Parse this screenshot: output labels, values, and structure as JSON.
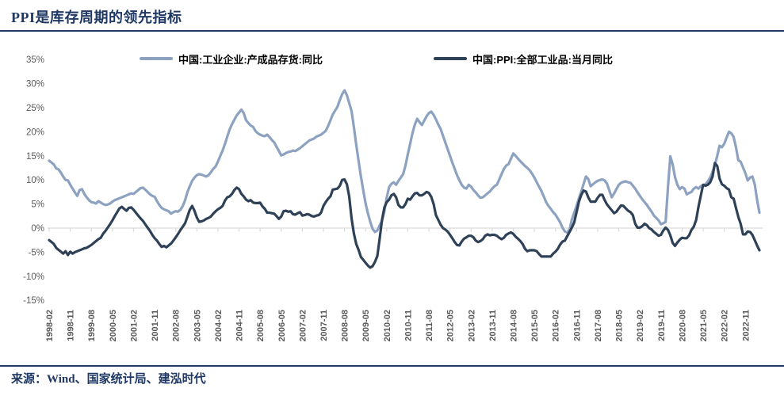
{
  "page": {
    "title": "PPI是库存周期的领先指标",
    "source": "来源：Wind、国家统计局、建泓时代"
  },
  "colors": {
    "accent_navy": "#1F3864",
    "axis_text": "#595959",
    "zero_line": "#D9D9D9",
    "series_inventory": "#8DA2C0",
    "series_ppi": "#2E4157"
  },
  "chart_data": {
    "type": "line",
    "title": "PPI是库存周期的领先指标",
    "xlabel": "",
    "ylabel": "",
    "ylim": [
      -15,
      35
    ],
    "y_tick_step": 5,
    "y_tick_labels": [
      "35%",
      "30%",
      "25%",
      "20%",
      "15%",
      "10%",
      "5%",
      "0%",
      "-5%",
      "-10%",
      "-15%"
    ],
    "grid": "zero-line-only",
    "legend_position": "top",
    "x_start": "1998-02",
    "x_end": "2023-05",
    "x_frequency": "monthly",
    "x_tick_interval_months": 9,
    "x_tick_labels": [
      "1998-02",
      "1998-11",
      "1999-08",
      "2000-05",
      "2001-02",
      "2001-11",
      "2002-08",
      "2003-05",
      "2004-02",
      "2004-11",
      "2005-08",
      "2006-05",
      "2007-02",
      "2007-11",
      "2008-08",
      "2009-05",
      "2010-02",
      "2010-11",
      "2011-08",
      "2012-05",
      "2013-02",
      "2013-11",
      "2014-08",
      "2015-05",
      "2016-02",
      "2016-11",
      "2017-08",
      "2018-05",
      "2019-02",
      "2019-11",
      "2020-08",
      "2021-05",
      "2022-02",
      "2022-11"
    ],
    "series": [
      {
        "name": "中国:工业企业:产成品存货:同比",
        "color": "#8DA2C0",
        "values": [
          14.0,
          13.6,
          13.2,
          12.4,
          12.2,
          11.5,
          10.7,
          10.0,
          9.9,
          9.0,
          8.2,
          7.4,
          6.7,
          7.9,
          8.1,
          7.1,
          6.4,
          5.8,
          5.4,
          5.3,
          5.1,
          5.6,
          5.3,
          5.0,
          4.8,
          4.9,
          5.1,
          5.5,
          5.8,
          6.0,
          6.2,
          6.4,
          6.6,
          6.8,
          7.0,
          7.2,
          7.1,
          7.5,
          7.9,
          8.3,
          8.4,
          8.0,
          7.5,
          7.0,
          6.7,
          6.5,
          5.6,
          4.8,
          4.2,
          3.9,
          3.7,
          3.5,
          3.0,
          3.3,
          3.5,
          3.4,
          3.8,
          4.6,
          5.8,
          7.5,
          8.7,
          9.8,
          10.5,
          11.0,
          11.2,
          11.1,
          10.9,
          10.7,
          11.0,
          11.6,
          12.3,
          12.8,
          13.8,
          15.0,
          16.1,
          17.5,
          19.0,
          20.5,
          21.6,
          22.5,
          23.4,
          24.0,
          24.6,
          23.9,
          22.4,
          21.8,
          21.3,
          21.0,
          20.2,
          19.7,
          19.4,
          19.2,
          19.1,
          19.4,
          18.9,
          18.3,
          17.8,
          16.9,
          16.0,
          15.1,
          15.3,
          15.6,
          15.8,
          15.9,
          16.1,
          16.0,
          16.3,
          16.6,
          17.0,
          17.4,
          17.8,
          18.2,
          18.4,
          18.6,
          19.0,
          19.2,
          19.4,
          19.8,
          20.2,
          21.2,
          22.4,
          23.6,
          24.4,
          25.2,
          26.6,
          27.8,
          28.6,
          27.6,
          26.0,
          24.3,
          21.0,
          17.3,
          14.0,
          10.7,
          7.8,
          5.1,
          3.0,
          1.3,
          -0.2,
          -0.8,
          -0.5,
          0.6,
          1.5,
          3.5,
          6.3,
          8.5,
          9.2,
          9.5,
          9.0,
          9.8,
          10.5,
          11.2,
          13.0,
          15.3,
          17.5,
          19.7,
          21.5,
          22.7,
          22.0,
          21.4,
          22.3,
          23.2,
          23.9,
          24.2,
          23.5,
          22.6,
          21.5,
          20.6,
          19.2,
          17.8,
          16.4,
          15.0,
          13.6,
          12.3,
          11.0,
          9.9,
          9.0,
          8.4,
          8.2,
          9.0,
          8.6,
          7.9,
          7.4,
          6.8,
          6.3,
          6.4,
          6.8,
          7.2,
          7.6,
          8.2,
          8.7,
          9.0,
          10.1,
          11.2,
          12.3,
          13.0,
          13.3,
          14.4,
          15.5,
          15.0,
          14.4,
          13.9,
          13.4,
          12.9,
          12.5,
          12.0,
          11.3,
          10.5,
          9.5,
          8.6,
          7.7,
          6.6,
          5.4,
          4.6,
          4.0,
          3.3,
          2.8,
          2.0,
          1.2,
          0.1,
          -0.7,
          -0.9,
          -0.3,
          1.8,
          3.2,
          4.6,
          6.2,
          7.6,
          9.2,
          10.7,
          10.2,
          8.7,
          9.1,
          9.5,
          9.8,
          10.0,
          10.1,
          9.9,
          9.2,
          7.8,
          6.4,
          7.2,
          8.1,
          9.0,
          9.4,
          9.6,
          9.7,
          9.5,
          9.4,
          8.8,
          8.2,
          7.4,
          6.7,
          6.0,
          5.4,
          4.8,
          4.1,
          3.4,
          2.6,
          2.1,
          1.6,
          0.8,
          1.0,
          1.3,
          8.7,
          14.9,
          13.2,
          10.6,
          9.0,
          8.1,
          8.5,
          8.2,
          7.0,
          7.3,
          7.5,
          8.2,
          8.5,
          8.2,
          8.7,
          8.9,
          9.1,
          9.7,
          10.5,
          11.7,
          13.1,
          15.0,
          17.1,
          16.8,
          17.5,
          18.8,
          20.0,
          19.7,
          18.9,
          16.8,
          14.1,
          13.8,
          12.6,
          11.4,
          9.9,
          10.5,
          10.7,
          9.1,
          5.9,
          3.2
        ]
      },
      {
        "name": "中国:PPI:全部工业品:当月同比",
        "color": "#2E4157",
        "values": [
          -2.5,
          -2.9,
          -3.3,
          -4.1,
          -4.5,
          -4.9,
          -5.3,
          -4.8,
          -5.6,
          -4.9,
          -5.3,
          -5.0,
          -4.8,
          -4.6,
          -4.4,
          -4.2,
          -4.1,
          -3.8,
          -3.5,
          -3.1,
          -2.7,
          -2.3,
          -2.0,
          -1.2,
          -0.6,
          0.1,
          0.8,
          1.6,
          2.5,
          3.3,
          4.1,
          4.4,
          4.0,
          3.6,
          4.2,
          4.3,
          3.8,
          3.2,
          2.6,
          2.0,
          1.5,
          0.8,
          0.1,
          -0.6,
          -1.4,
          -2.1,
          -2.6,
          -3.3,
          -3.9,
          -3.7,
          -4.0,
          -3.6,
          -3.2,
          -2.6,
          -1.9,
          -1.2,
          -0.4,
          0.3,
          1.0,
          2.4,
          3.8,
          4.6,
          3.6,
          2.2,
          1.3,
          1.4,
          1.6,
          1.9,
          2.1,
          2.4,
          3.0,
          3.5,
          3.9,
          4.2,
          4.6,
          5.7,
          6.4,
          6.6,
          7.1,
          7.9,
          8.4,
          8.1,
          7.1,
          6.6,
          5.9,
          5.6,
          5.8,
          5.3,
          5.2,
          5.2,
          5.3,
          4.5,
          4.0,
          3.2,
          3.2,
          3.1,
          3.0,
          2.5,
          1.9,
          2.4,
          3.5,
          3.6,
          3.4,
          3.5,
          2.9,
          2.8,
          3.1,
          3.3,
          2.6,
          2.7,
          2.9,
          2.8,
          2.5,
          2.4,
          2.6,
          2.7,
          3.2,
          4.6,
          5.4,
          6.1,
          6.6,
          8.0,
          8.1,
          8.2,
          8.8,
          10.0,
          10.1,
          9.1,
          6.6,
          2.0,
          -1.1,
          -3.3,
          -4.5,
          -6.0,
          -6.6,
          -7.2,
          -7.8,
          -8.2,
          -7.9,
          -7.0,
          -5.8,
          -2.1,
          1.7,
          4.3,
          5.4,
          5.9,
          6.8,
          7.1,
          6.4,
          4.8,
          4.3,
          4.3,
          5.0,
          6.1,
          5.9,
          6.6,
          7.2,
          7.3,
          6.8,
          6.8,
          7.1,
          7.5,
          7.3,
          6.5,
          5.0,
          2.7,
          1.7,
          0.7,
          0.0,
          -0.3,
          -0.7,
          -1.4,
          -2.1,
          -2.9,
          -3.5,
          -3.6,
          -2.8,
          -2.2,
          -1.9,
          -1.6,
          -1.6,
          -1.9,
          -2.6,
          -2.9,
          -2.7,
          -2.3,
          -1.6,
          -1.3,
          -1.5,
          -1.4,
          -1.4,
          -1.6,
          -2.0,
          -2.3,
          -2.0,
          -1.4,
          -1.1,
          -0.9,
          -1.2,
          -1.8,
          -2.2,
          -2.7,
          -3.3,
          -4.3,
          -4.8,
          -4.6,
          -4.6,
          -4.6,
          -4.8,
          -5.4,
          -5.9,
          -5.9,
          -5.9,
          -5.9,
          -5.9,
          -5.3,
          -4.9,
          -4.3,
          -3.4,
          -2.8,
          -2.6,
          -1.7,
          -0.8,
          0.1,
          1.2,
          3.3,
          5.5,
          6.9,
          7.8,
          7.6,
          6.4,
          5.5,
          5.5,
          5.5,
          6.3,
          6.9,
          6.9,
          5.8,
          4.9,
          4.3,
          3.7,
          3.1,
          3.4,
          4.1,
          4.7,
          4.6,
          4.1,
          3.6,
          3.3,
          2.7,
          0.9,
          0.1,
          0.1,
          0.4,
          0.9,
          0.6,
          0.0,
          -0.3,
          -0.8,
          -1.2,
          -1.6,
          -1.4,
          -0.5,
          0.1,
          -0.4,
          -1.5,
          -3.1,
          -3.7,
          -3.0,
          -2.4,
          -2.0,
          -2.1,
          -2.1,
          -1.5,
          -0.4,
          0.3,
          1.7,
          4.4,
          6.8,
          9.0,
          8.8,
          9.0,
          9.5,
          10.7,
          13.5,
          12.9,
          10.3,
          9.1,
          8.8,
          8.3,
          8.0,
          6.4,
          6.1,
          4.2,
          2.3,
          0.9,
          -1.3,
          -1.3,
          -0.7,
          -0.8,
          -1.4,
          -2.5,
          -3.6,
          -4.6
        ]
      }
    ]
  }
}
